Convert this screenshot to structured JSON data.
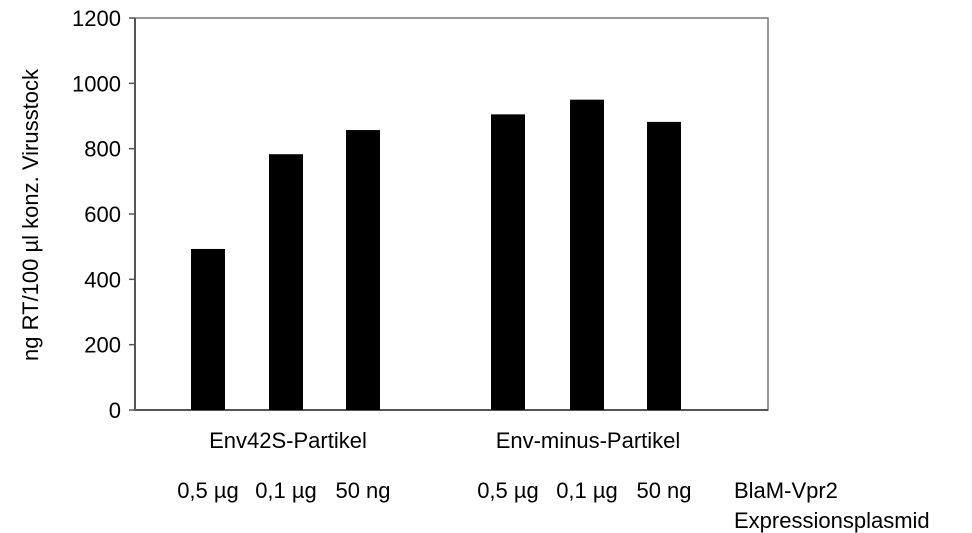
{
  "chart_data": {
    "type": "bar",
    "title": "",
    "ylabel": "ng RT/100 µl konz. Virusstock",
    "xlabel": "",
    "ylim": [
      0,
      1200
    ],
    "yticks": [
      0,
      200,
      400,
      600,
      800,
      1000,
      1200
    ],
    "grid": false,
    "legend": "none",
    "bar_color": "#000000",
    "groups": [
      {
        "label": "Env42S-Partikel",
        "categories": [
          "0,5 µg",
          "0,1 µg",
          "50 ng"
        ],
        "values": [
          493,
          783,
          857
        ]
      },
      {
        "label": "Env-minus-Partikel",
        "categories": [
          "0,5 µg",
          "0,1 µg",
          "50 ng"
        ],
        "values": [
          905,
          950,
          882
        ]
      }
    ],
    "category_axis_note": [
      "BlaM-Vpr2",
      "Expressionsplasmid"
    ]
  }
}
